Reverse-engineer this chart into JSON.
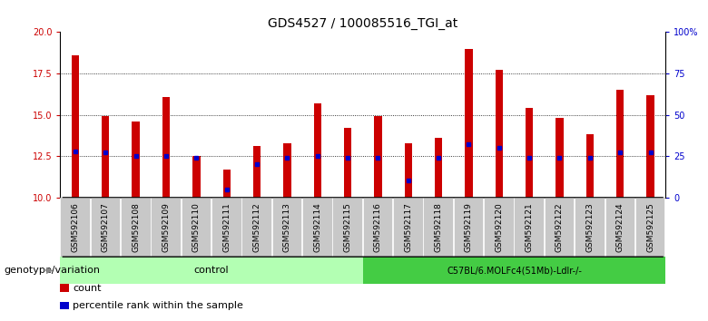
{
  "title": "GDS4527 / 100085516_TGI_at",
  "samples": [
    "GSM592106",
    "GSM592107",
    "GSM592108",
    "GSM592109",
    "GSM592110",
    "GSM592111",
    "GSM592112",
    "GSM592113",
    "GSM592114",
    "GSM592115",
    "GSM592116",
    "GSM592117",
    "GSM592118",
    "GSM592119",
    "GSM592120",
    "GSM592121",
    "GSM592122",
    "GSM592123",
    "GSM592124",
    "GSM592125"
  ],
  "counts": [
    18.6,
    14.9,
    14.6,
    16.1,
    12.5,
    11.7,
    13.1,
    13.3,
    15.7,
    14.2,
    14.9,
    13.3,
    13.6,
    19.0,
    17.7,
    15.4,
    14.8,
    13.8,
    16.5,
    16.2
  ],
  "percentile_values": [
    28,
    27,
    25,
    25,
    24,
    5,
    20,
    24,
    25,
    24,
    24,
    10,
    24,
    32,
    30,
    24,
    24,
    24,
    27,
    27
  ],
  "ymin": 10,
  "ymax": 20,
  "yticks": [
    10,
    12.5,
    15,
    17.5,
    20
  ],
  "right_yticks": [
    0,
    25,
    50,
    75,
    100
  ],
  "right_ytick_labels": [
    "0",
    "25",
    "50",
    "75",
    "100%"
  ],
  "bar_color": "#cc0000",
  "dot_color": "#0000cc",
  "control_bg": "#b3ffb3",
  "treatment_bg": "#44cc44",
  "control_label": "control",
  "treatment_label": "C57BL/6.MOLFc4(51Mb)-Ldlr-/-",
  "genotype_label": "genotype/variation",
  "control_count": 10,
  "treatment_count": 10,
  "legend_count_label": "count",
  "legend_percentile_label": "percentile rank within the sample",
  "title_fontsize": 10,
  "tick_fontsize": 7,
  "label_fontsize": 8
}
